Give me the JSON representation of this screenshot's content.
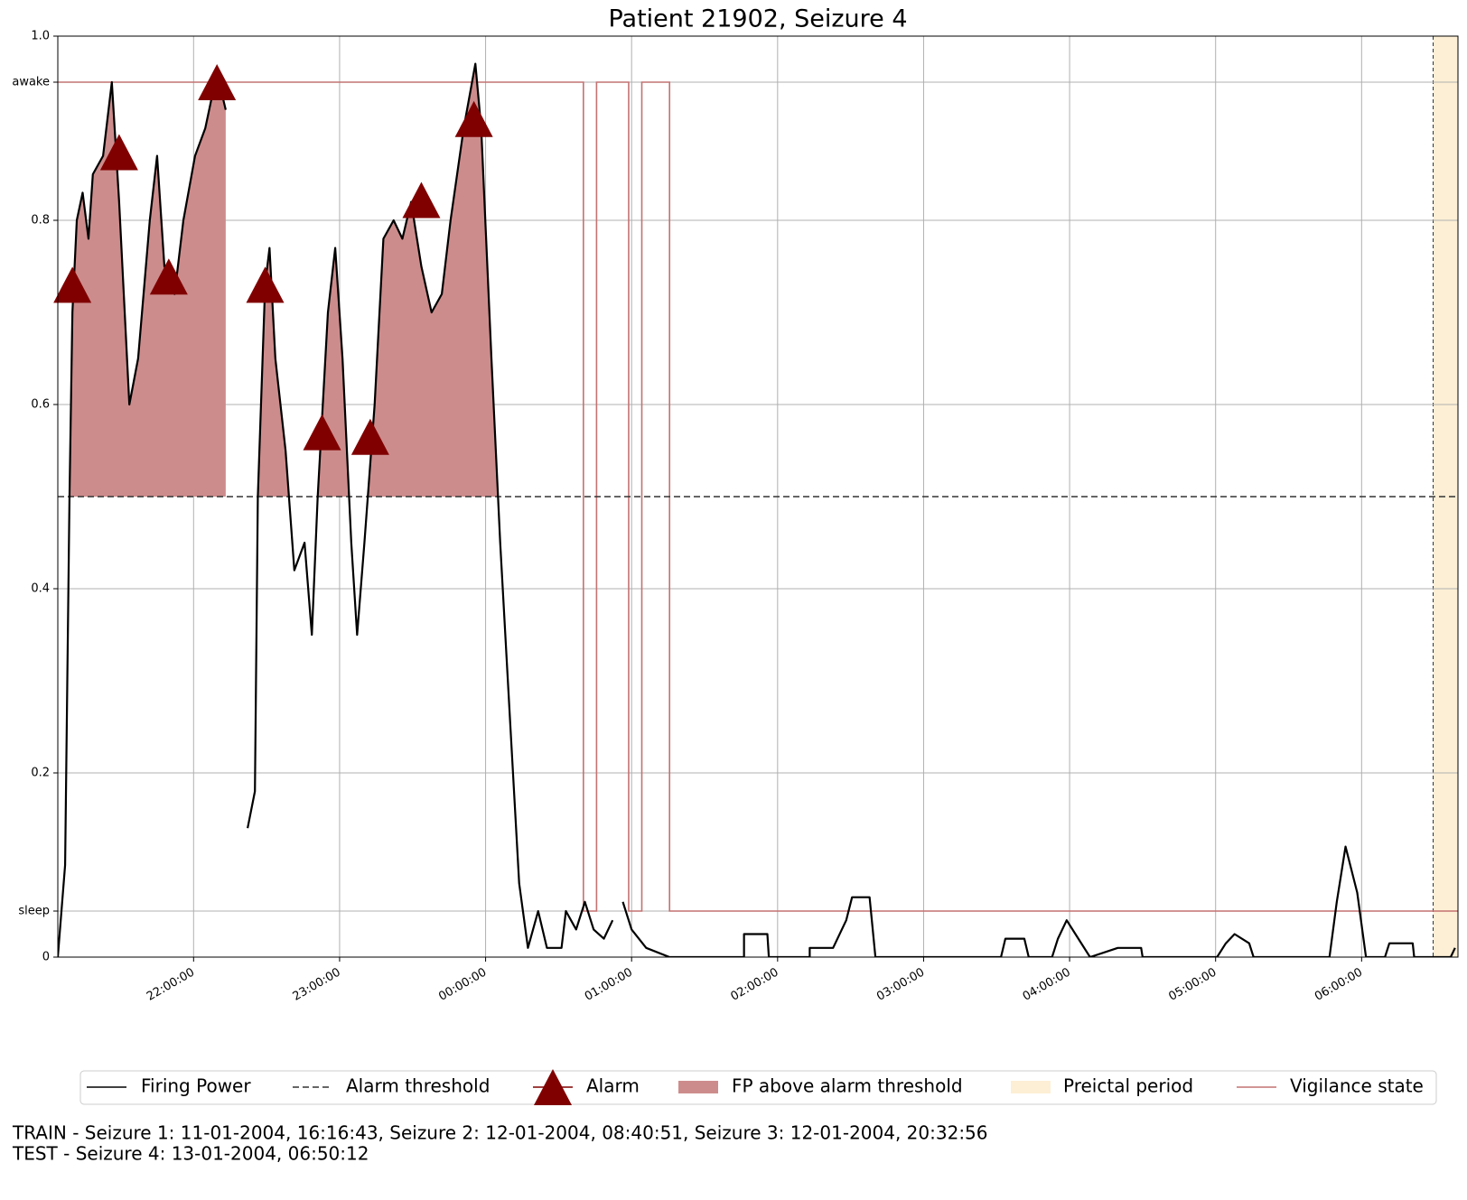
{
  "chart_data": {
    "type": "line",
    "title": "Patient 21902, Seizure 4",
    "x": [
      21.07,
      21.12,
      21.15,
      21.17,
      21.2,
      21.24,
      21.28,
      21.31,
      21.38,
      21.44,
      21.49,
      21.56,
      21.62,
      21.7,
      21.75,
      21.8,
      21.87,
      21.93,
      22.01,
      22.08,
      22.16,
      22.22,
      22.3,
      22.37,
      22.42,
      22.44,
      22.49,
      22.52,
      22.56,
      22.63,
      22.69,
      22.76,
      22.81,
      22.85,
      22.92,
      22.97,
      23.02,
      23.08,
      23.12,
      23.17,
      23.24,
      23.3,
      23.37,
      23.43,
      23.49,
      23.56,
      23.63,
      23.7,
      23.76,
      23.85,
      23.93,
      23.97,
      24.04,
      24.1,
      24.17,
      24.23,
      24.29,
      24.36,
      24.42,
      24.52,
      24.55,
      24.62,
      24.68,
      24.74,
      24.81,
      24.87,
      24.9,
      24.94,
      25.0,
      25.1,
      25.26,
      25.77,
      25.77,
      25.93,
      25.94,
      26.22,
      26.22,
      26.38,
      26.47,
      26.51,
      26.63,
      26.67,
      27.53,
      27.56,
      27.69,
      27.72,
      27.88,
      27.92,
      27.98,
      28.04,
      28.14,
      28.33,
      28.49,
      28.5,
      29.01,
      29.07,
      29.13,
      29.23,
      29.26,
      29.78,
      29.83,
      29.89,
      29.97,
      30.03,
      30.16,
      30.19,
      30.35,
      30.36,
      30.61,
      30.64
    ],
    "series": [
      {
        "name": "Firing Power",
        "color": "#000000",
        "values": [
          0,
          0.1,
          0.5,
          0.7,
          0.8,
          0.83,
          0.78,
          0.85,
          0.87,
          0.95,
          0.82,
          0.6,
          0.65,
          0.8,
          0.87,
          0.75,
          0.72,
          0.8,
          0.87,
          0.9,
          0.96,
          0.92,
          null,
          0.14,
          0.18,
          0.5,
          0.73,
          0.77,
          0.65,
          0.55,
          0.42,
          0.45,
          0.35,
          0.5,
          0.7,
          0.77,
          0.65,
          0.45,
          0.35,
          0.45,
          0.6,
          0.78,
          0.8,
          0.78,
          0.82,
          0.75,
          0.7,
          0.72,
          0.8,
          0.9,
          0.97,
          0.9,
          0.65,
          0.45,
          0.25,
          0.08,
          0.01,
          0.05,
          0.01,
          0.01,
          0.05,
          0.03,
          0.06,
          0.03,
          0.02,
          0.04,
          null,
          0.06,
          0.03,
          0.01,
          0,
          0,
          0.025,
          0.025,
          0,
          0,
          0.01,
          0.01,
          0.04,
          0.065,
          0.065,
          0,
          0,
          0.02,
          0.02,
          0,
          0,
          0.02,
          0.04,
          0.025,
          0,
          0.01,
          0.01,
          0,
          0,
          0.015,
          0.025,
          0.015,
          0,
          0,
          0.06,
          0.12,
          0.07,
          0,
          0,
          0.015,
          0.015,
          0,
          0,
          0.01
        ]
      }
    ],
    "threshold": {
      "name": "Alarm threshold",
      "value": 0.5,
      "color": "#333333"
    },
    "alarms": {
      "name": "Alarm",
      "color": "#800000",
      "x": [
        21.17,
        21.49,
        21.83,
        22.16,
        22.49,
        22.88,
        23.21,
        23.56,
        23.92
      ],
      "values": [
        0.73,
        0.874,
        0.739,
        0.95,
        0.73,
        0.57,
        0.565,
        0.822,
        0.91
      ]
    },
    "fill": {
      "name": "FP above alarm threshold",
      "color": "#cd8c8c"
    },
    "preictal": {
      "name": "Preictal period",
      "color": "#fdefd5",
      "x": [
        30.49,
        30.66
      ]
    },
    "vigilance": {
      "name": "Vigilance state",
      "color": "#c47272",
      "x": [
        21.07,
        24.67,
        24.76,
        24.98,
        25.07,
        25.26,
        30.66
      ],
      "values": [
        0.95,
        0.05,
        0.95,
        0.05,
        0.95,
        0.05,
        0.05
      ]
    },
    "xlim": [
      21.07,
      30.66
    ],
    "ylim": [
      0,
      1
    ],
    "xticks": [
      {
        "value": 22,
        "label": "22:00:00"
      },
      {
        "value": 23,
        "label": "23:00:00"
      },
      {
        "value": 24,
        "label": "00:00:00"
      },
      {
        "value": 25,
        "label": "01:00:00"
      },
      {
        "value": 26,
        "label": "02:00:00"
      },
      {
        "value": 27,
        "label": "03:00:00"
      },
      {
        "value": 28,
        "label": "04:00:00"
      },
      {
        "value": 29,
        "label": "05:00:00"
      },
      {
        "value": 30,
        "label": "06:00:00"
      }
    ],
    "yticks": [
      0,
      {
        "value": 0.05,
        "label": "sleep"
      },
      0.2,
      0.4,
      0.6,
      0.8,
      {
        "value": 0.95,
        "label": "awake"
      },
      {
        "value": 1,
        "label": "1.0"
      }
    ],
    "grid": true,
    "footer": [
      "TRAIN - Seizure 1: 11-01-2004, 16:16:43, Seizure 2: 12-01-2004, 08:40:51, Seizure 3: 12-01-2004, 20:32:56",
      "TEST - Seizure 4: 13-01-2004, 06:50:12"
    ]
  }
}
